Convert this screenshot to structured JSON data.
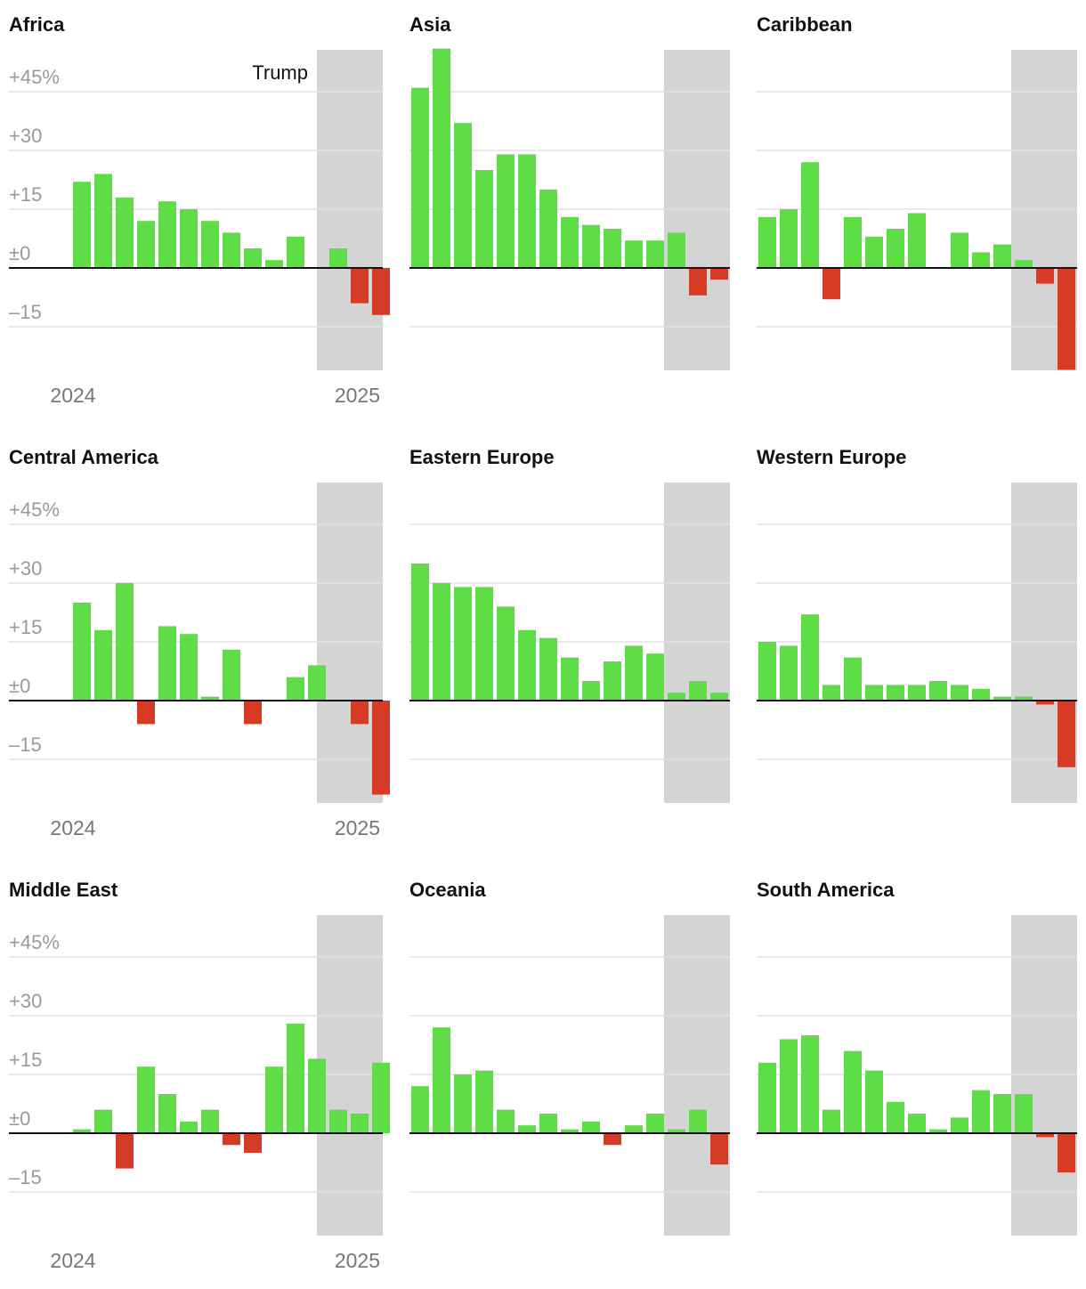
{
  "colors": {
    "positive": "#5fdd47",
    "negative": "#d63b26",
    "shade": "#d4d4d4",
    "grid": "#e2e2e2",
    "zero": "#111111"
  },
  "chart_data": [
    {
      "type": "bar",
      "title": "Africa",
      "ylim": [
        -26,
        56
      ],
      "yticks": [
        "+45%",
        "+30",
        "+15",
        "±0",
        "–15"
      ],
      "xlabels": [
        "2024",
        "2025"
      ],
      "shaded_label": "Trump",
      "values": [
        22,
        24,
        18,
        12,
        17,
        15,
        12,
        9,
        5,
        2,
        8,
        null,
        5,
        -9,
        -12
      ]
    },
    {
      "type": "bar",
      "title": "Asia",
      "ylim": [
        -26,
        56
      ],
      "values": [
        46,
        56,
        37,
        25,
        29,
        29,
        20,
        13,
        11,
        10,
        7,
        7,
        9,
        -7,
        -3
      ]
    },
    {
      "type": "bar",
      "title": "Caribbean",
      "ylim": [
        -26,
        56
      ],
      "values": [
        13,
        15,
        27,
        -8,
        13,
        8,
        10,
        14,
        null,
        9,
        4,
        6,
        2,
        -4,
        -26
      ]
    },
    {
      "type": "bar",
      "title": "Central America",
      "ylim": [
        -26,
        56
      ],
      "yticks": [
        "+45%",
        "+30",
        "+15",
        "±0",
        "–15"
      ],
      "xlabels": [
        "2024",
        "2025"
      ],
      "values": [
        25,
        18,
        30,
        -6,
        19,
        17,
        1,
        13,
        -6,
        null,
        6,
        9,
        null,
        -6,
        -24
      ]
    },
    {
      "type": "bar",
      "title": "Eastern Europe",
      "ylim": [
        -26,
        56
      ],
      "values": [
        35,
        30,
        29,
        29,
        24,
        18,
        16,
        11,
        5,
        10,
        14,
        12,
        2,
        5,
        2
      ]
    },
    {
      "type": "bar",
      "title": "Western Europe",
      "ylim": [
        -26,
        56
      ],
      "values": [
        15,
        14,
        22,
        4,
        11,
        4,
        4,
        4,
        5,
        4,
        3,
        1,
        1,
        -1,
        -17
      ]
    },
    {
      "type": "bar",
      "title": "Middle East",
      "ylim": [
        -26,
        56
      ],
      "yticks": [
        "+45%",
        "+30",
        "+15",
        "±0",
        "–15"
      ],
      "xlabels": [
        "2024",
        "2025"
      ],
      "values": [
        1,
        6,
        -9,
        17,
        10,
        3,
        6,
        -3,
        -5,
        17,
        28,
        19,
        6,
        5,
        18
      ]
    },
    {
      "type": "bar",
      "title": "Oceania",
      "ylim": [
        -26,
        56
      ],
      "values": [
        12,
        27,
        15,
        16,
        6,
        2,
        5,
        1,
        3,
        -3,
        2,
        5,
        1,
        6,
        -8
      ]
    },
    {
      "type": "bar",
      "title": "South America",
      "ylim": [
        -26,
        56
      ],
      "values": [
        18,
        24,
        25,
        6,
        21,
        16,
        8,
        5,
        1,
        4,
        11,
        10,
        10,
        -1,
        -10
      ]
    }
  ]
}
